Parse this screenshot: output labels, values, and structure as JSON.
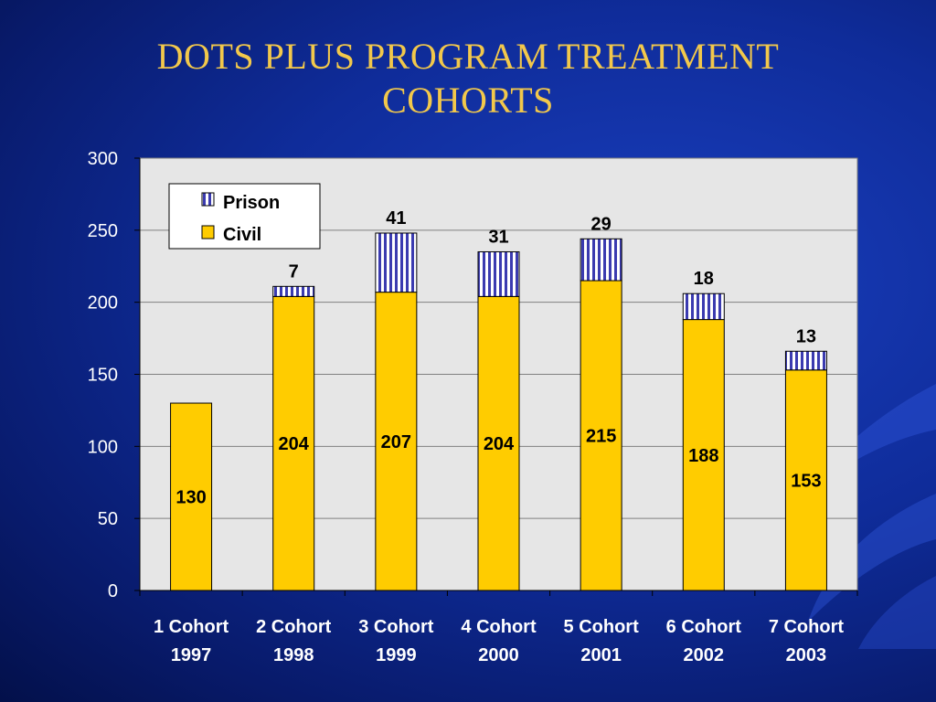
{
  "slide": {
    "title_line1": "DOTS PLUS PROGRAM TREATMENT",
    "title_line2": "COHORTS"
  },
  "colors": {
    "background": "#0f2c9a",
    "title": "#f2c84b",
    "civil": "#ffcc00",
    "prison_fill": "#ffffff",
    "prison_stripe": "#3b3bb0",
    "plot_area": "#e6e6e6"
  },
  "chart_data": {
    "type": "bar",
    "stacked": true,
    "title": "DOTS PLUS PROGRAM TREATMENT COHORTS",
    "xlabel": "",
    "ylabel": "",
    "ylim": [
      0,
      300
    ],
    "yticks": [
      0,
      50,
      100,
      150,
      200,
      250,
      300
    ],
    "grid": true,
    "legend_position": "top-left",
    "categories": [
      [
        "1 Cohort",
        "1997"
      ],
      [
        "2 Cohort",
        "1998"
      ],
      [
        "3 Cohort",
        "1999"
      ],
      [
        "4 Cohort",
        "2000"
      ],
      [
        "5 Cohort",
        "2001"
      ],
      [
        "6 Cohort",
        "2002"
      ],
      [
        "7 Cohort",
        "2003"
      ]
    ],
    "series": [
      {
        "name": "Civil",
        "values": [
          130,
          204,
          207,
          204,
          215,
          188,
          153
        ],
        "labels": [
          "130",
          "204",
          "207",
          "204",
          "215",
          "188",
          "153"
        ]
      },
      {
        "name": "Prison",
        "values": [
          0,
          7,
          41,
          31,
          29,
          18,
          13
        ],
        "labels": [
          "",
          "7",
          "41",
          "31",
          "29",
          "18",
          "13"
        ]
      }
    ],
    "legend": [
      "Prison",
      "Civil"
    ]
  }
}
